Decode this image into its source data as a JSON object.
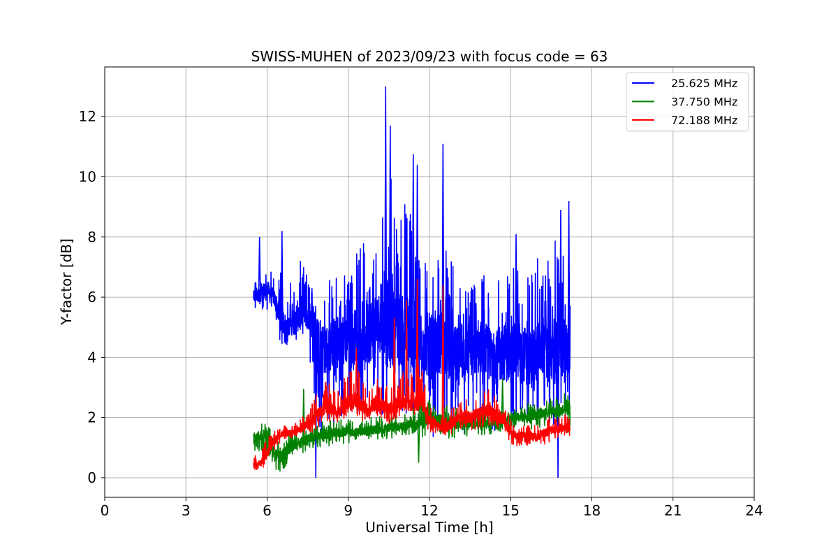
{
  "chart_data": {
    "type": "line",
    "title": "SWISS-MUHEN of 2023/09/23 with focus code = 63",
    "xlabel": "Universal Time [h]",
    "ylabel": "Y-factor [dB]",
    "xlim": [
      0,
      24
    ],
    "ylim": [
      -0.65,
      13.65
    ],
    "xticks": [
      0,
      3,
      6,
      9,
      12,
      15,
      18,
      21,
      24
    ],
    "yticks": [
      0,
      2,
      4,
      6,
      8,
      10,
      12
    ],
    "grid": true,
    "legend_position": "top-right",
    "series": [
      {
        "name": "25.625 MHz",
        "color": "#0000ff",
        "x": [
          5.5,
          5.75,
          6.0,
          6.25,
          6.5,
          6.75,
          7.0,
          7.25,
          7.5,
          7.75,
          8.0,
          8.25,
          8.5,
          8.75,
          9.0,
          9.25,
          9.5,
          9.75,
          10.0,
          10.25,
          10.5,
          10.75,
          11.0,
          11.25,
          11.5,
          11.75,
          12.0,
          12.25,
          12.5,
          12.75,
          13.0,
          13.25,
          13.5,
          13.75,
          14.0,
          14.25,
          14.5,
          14.75,
          15.0,
          15.25,
          15.5,
          15.75,
          16.0,
          16.25,
          16.5,
          16.75,
          17.0,
          17.2
        ],
        "values": [
          6.0,
          6.1,
          6.3,
          6.0,
          5.3,
          5.0,
          5.2,
          5.4,
          5.3,
          5.2,
          4.2,
          4.3,
          4.4,
          4.5,
          4.6,
          4.7,
          4.8,
          4.9,
          5.0,
          5.2,
          5.1,
          4.9,
          5.0,
          5.1,
          4.7,
          4.5,
          4.4,
          4.3,
          4.6,
          4.2,
          4.0,
          4.1,
          4.3,
          4.4,
          4.2,
          4.1,
          4.0,
          4.2,
          4.0,
          4.3,
          4.1,
          4.0,
          4.2,
          4.4,
          4.1,
          4.2,
          4.3,
          4.0
        ],
        "min": [
          5.3,
          5.4,
          5.5,
          5.4,
          4.3,
          4.4,
          4.5,
          4.5,
          4.6,
          2.0,
          1.4,
          1.9,
          1.6,
          1.8,
          2.0,
          2.2,
          2.0,
          2.2,
          2.3,
          2.1,
          2.2,
          2.0,
          1.7,
          2.0,
          1.8,
          1.7,
          1.3,
          1.4,
          1.6,
          1.4,
          1.3,
          1.2,
          1.3,
          1.3,
          1.2,
          1.3,
          1.5,
          1.6,
          1.5,
          1.6,
          1.6,
          1.5,
          1.7,
          1.8,
          1.7,
          1.6,
          1.8,
          2.1
        ],
        "max": [
          6.5,
          6.7,
          7.0,
          6.8,
          7.2,
          6.0,
          7.1,
          7.2,
          6.8,
          6.3,
          6.1,
          6.5,
          7.1,
          6.8,
          6.9,
          7.5,
          8.2,
          8.6,
          7.9,
          9.0,
          11.0,
          8.9,
          9.2,
          9.5,
          8.7,
          7.8,
          7.4,
          7.2,
          8.0,
          7.3,
          6.9,
          6.5,
          6.3,
          6.6,
          6.9,
          6.4,
          6.7,
          7.1,
          6.8,
          7.2,
          7.0,
          6.9,
          7.4,
          7.2,
          7.6,
          8.1,
          7.8,
          6.6
        ],
        "spikes": [
          [
            5.72,
            8.0
          ],
          [
            6.55,
            8.2
          ],
          [
            10.38,
            13.0
          ],
          [
            10.55,
            11.7
          ],
          [
            11.4,
            10.75
          ],
          [
            11.55,
            10.4
          ],
          [
            12.5,
            11.1
          ],
          [
            15.2,
            8.1
          ],
          [
            16.85,
            8.9
          ],
          [
            17.15,
            9.2
          ],
          [
            7.8,
            0.0
          ],
          [
            16.75,
            0.0
          ]
        ]
      },
      {
        "name": "37.750 MHz",
        "color": "#008000",
        "x": [
          5.5,
          5.75,
          6.0,
          6.25,
          6.5,
          6.75,
          7.0,
          7.25,
          7.5,
          7.75,
          8.0,
          8.25,
          8.5,
          8.75,
          9.0,
          9.25,
          9.5,
          9.75,
          10.0,
          10.25,
          10.5,
          10.75,
          11.0,
          11.25,
          11.5,
          11.75,
          12.0,
          12.25,
          12.5,
          12.75,
          13.0,
          13.25,
          13.5,
          13.75,
          14.0,
          14.25,
          14.5,
          14.75,
          15.0,
          15.25,
          15.5,
          15.75,
          16.0,
          16.25,
          16.5,
          16.75,
          17.0,
          17.2
        ],
        "values": [
          1.3,
          1.4,
          1.4,
          0.8,
          0.7,
          0.9,
          1.1,
          1.2,
          1.3,
          1.35,
          1.4,
          1.45,
          1.5,
          1.5,
          1.55,
          1.5,
          1.55,
          1.6,
          1.6,
          1.6,
          1.65,
          1.7,
          1.7,
          1.75,
          1.75,
          1.8,
          2.0,
          1.95,
          1.9,
          1.85,
          1.8,
          1.85,
          1.8,
          1.75,
          1.8,
          1.85,
          1.9,
          1.95,
          2.0,
          2.05,
          2.0,
          2.05,
          2.1,
          2.15,
          2.2,
          2.2,
          2.25,
          2.3
        ],
        "min": [
          0.7,
          0.8,
          0.8,
          0.3,
          0.1,
          0.4,
          0.6,
          0.8,
          0.9,
          1.0,
          1.0,
          1.05,
          1.1,
          1.1,
          1.15,
          1.2,
          1.2,
          1.25,
          1.2,
          1.3,
          1.3,
          1.35,
          1.4,
          1.4,
          1.4,
          1.3,
          1.6,
          1.5,
          1.4,
          1.3,
          1.3,
          1.4,
          1.3,
          1.35,
          1.4,
          1.4,
          1.5,
          1.5,
          1.6,
          1.6,
          1.55,
          1.6,
          1.65,
          1.7,
          1.7,
          1.75,
          1.8,
          1.3
        ],
        "max": [
          1.8,
          1.8,
          1.9,
          1.3,
          1.2,
          1.4,
          1.6,
          1.7,
          1.8,
          1.8,
          1.85,
          1.9,
          1.95,
          1.95,
          2.0,
          1.95,
          2.0,
          2.05,
          2.05,
          2.05,
          2.1,
          2.15,
          2.2,
          2.3,
          2.4,
          2.5,
          2.6,
          2.5,
          2.45,
          2.4,
          2.3,
          2.3,
          2.25,
          2.2,
          2.25,
          2.3,
          2.35,
          2.4,
          2.5,
          2.5,
          2.45,
          2.5,
          2.55,
          2.6,
          2.7,
          2.75,
          2.8,
          2.8
        ],
        "spikes": [
          [
            7.35,
            2.95
          ],
          [
            11.6,
            0.5
          ],
          [
            14.7,
            3.3
          ]
        ]
      },
      {
        "name": "72.188 MHz",
        "color": "#ff0000",
        "x": [
          5.5,
          5.75,
          6.0,
          6.25,
          6.5,
          6.75,
          7.0,
          7.25,
          7.5,
          7.75,
          8.0,
          8.25,
          8.5,
          8.75,
          9.0,
          9.25,
          9.5,
          9.75,
          10.0,
          10.25,
          10.5,
          10.75,
          11.0,
          11.25,
          11.5,
          11.75,
          12.0,
          12.25,
          12.5,
          12.75,
          13.0,
          13.25,
          13.5,
          13.75,
          14.0,
          14.25,
          14.5,
          14.75,
          15.0,
          15.25,
          15.5,
          15.75,
          16.0,
          16.25,
          16.5,
          16.75,
          17.0,
          17.2
        ],
        "values": [
          0.4,
          0.45,
          0.8,
          1.2,
          1.45,
          1.5,
          1.5,
          1.6,
          1.8,
          1.9,
          2.3,
          2.4,
          2.2,
          2.3,
          2.5,
          2.6,
          2.4,
          2.2,
          2.5,
          2.4,
          2.3,
          2.4,
          2.5,
          2.5,
          2.6,
          2.5,
          1.9,
          1.8,
          1.6,
          1.7,
          2.0,
          2.1,
          2.0,
          2.1,
          2.2,
          2.2,
          2.0,
          1.9,
          1.5,
          1.4,
          1.4,
          1.35,
          1.35,
          1.5,
          1.6,
          1.65,
          1.7,
          1.7
        ],
        "min": [
          0.15,
          0.2,
          0.5,
          0.9,
          1.2,
          1.3,
          1.3,
          1.4,
          1.5,
          1.5,
          1.8,
          1.9,
          1.8,
          1.9,
          2.0,
          2.1,
          1.9,
          1.8,
          2.0,
          1.9,
          1.8,
          1.9,
          2.0,
          2.0,
          2.1,
          2.0,
          1.5,
          1.4,
          1.2,
          1.3,
          1.5,
          1.6,
          1.5,
          1.6,
          1.7,
          1.7,
          1.5,
          1.3,
          1.1,
          1.05,
          1.0,
          1.0,
          1.05,
          1.1,
          1.2,
          1.3,
          1.4,
          1.4
        ],
        "max": [
          0.8,
          0.9,
          1.3,
          1.6,
          1.7,
          1.75,
          1.8,
          2.0,
          2.3,
          2.6,
          3.2,
          3.4,
          3.0,
          3.2,
          3.5,
          3.8,
          3.3,
          3.0,
          3.4,
          3.2,
          3.0,
          3.3,
          3.6,
          3.8,
          4.2,
          3.6,
          2.4,
          2.2,
          2.0,
          2.3,
          2.6,
          2.8,
          2.6,
          2.7,
          2.9,
          3.0,
          2.6,
          2.4,
          2.0,
          1.8,
          1.8,
          1.7,
          1.8,
          1.9,
          2.1,
          2.1,
          2.1,
          2.0
        ],
        "spikes": [
          [
            9.3,
            4.3
          ],
          [
            10.7,
            5.3
          ],
          [
            11.15,
            5.9
          ],
          [
            11.55,
            6.6
          ],
          [
            12.5,
            6.4
          ]
        ]
      }
    ]
  }
}
